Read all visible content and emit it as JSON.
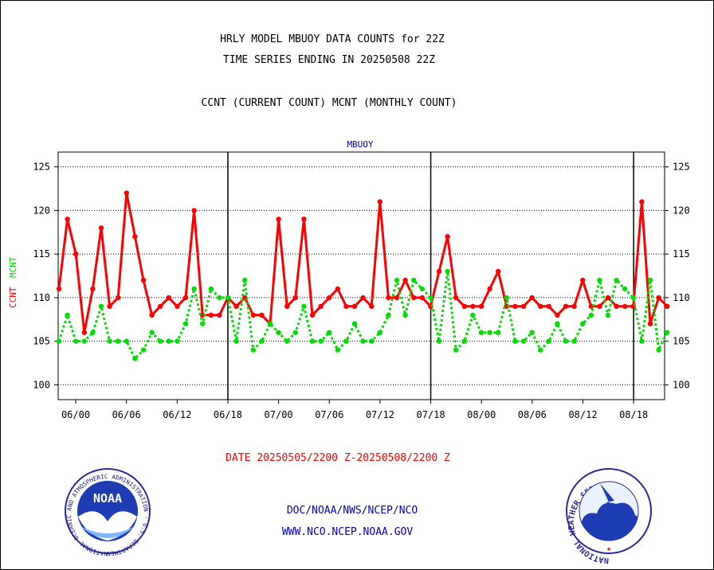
{
  "header": {
    "title_line1": "HRLY MODEL MBUOY DATA COUNTS for 22Z",
    "title_line2": "TIME SERIES ENDING IN 20250508 22Z",
    "subtitle": "CCNT (CURRENT COUNT) MCNT (MONTHLY COUNT)",
    "plot_label": "MBUOY"
  },
  "footer": {
    "date_range": "DATE 20250505/2200 Z-20250508/2200 Z",
    "path": "DOC/NOAA/NWS/NCEP/NCO",
    "website": "WWW.NCO.NCEP.NOAA.GOV"
  },
  "logos": {
    "noaa_text": "NOAA",
    "noaa_ring_text": "NATIONAL OCEANIC AND ATMOSPHERIC ADMINISTRATION · U.S. DEPARTMENT OF COMMERCE ·",
    "nws_ring_text": "NATIONAL WEATHER SERVICE"
  },
  "colors": {
    "ccnt": "#ff0000",
    "mcnt": "#00dd00",
    "title": "#000000",
    "label_blue": "#0000cc",
    "date_red": "#ff0000"
  },
  "chart_data": {
    "type": "line",
    "ylabel_ccnt": "CCNT",
    "ylabel_mcnt": "MCNT",
    "ylim": [
      98.3,
      126.7
    ],
    "yticks": [
      100,
      105,
      110,
      115,
      120,
      125
    ],
    "xticks": [
      "06/00",
      "06/06",
      "06/12",
      "06/18",
      "07/00",
      "07/06",
      "07/12",
      "07/18",
      "08/00",
      "08/06",
      "08/12",
      "08/18"
    ],
    "day_dividers": [
      "06/18",
      "07/18",
      "08/18"
    ],
    "grid": true,
    "series": [
      {
        "name": "CCNT",
        "values": [
          111,
          119,
          115,
          106,
          111,
          118,
          109,
          110,
          122,
          117,
          112,
          108,
          109,
          110,
          109,
          110,
          120,
          108,
          108,
          108,
          110,
          109,
          110,
          108,
          108,
          107,
          119,
          109,
          110,
          119,
          108,
          109,
          110,
          111,
          109,
          109,
          110,
          109,
          121,
          110,
          110,
          112,
          110,
          110,
          109,
          113,
          117,
          110,
          109,
          109,
          109,
          111,
          113,
          109,
          109,
          109,
          110,
          109,
          109,
          108,
          109,
          109,
          112,
          109,
          109,
          110,
          109,
          109,
          109,
          121,
          107,
          110,
          109
        ]
      },
      {
        "name": "MCNT",
        "values": [
          105,
          108,
          105,
          105,
          106,
          109,
          105,
          105,
          105,
          103,
          104,
          106,
          105,
          105,
          105,
          107,
          111,
          107,
          111,
          110,
          110,
          105,
          112,
          104,
          105,
          107,
          106,
          105,
          106,
          109,
          105,
          105,
          106,
          104,
          105,
          107,
          105,
          105,
          106,
          108,
          112,
          108,
          112,
          111,
          110,
          105,
          113,
          104,
          105,
          108,
          106,
          106,
          106,
          110,
          105,
          105,
          106,
          104,
          105,
          107,
          105,
          105,
          107,
          108,
          112,
          108,
          112,
          111,
          110,
          105,
          112,
          104,
          106
        ]
      }
    ]
  }
}
